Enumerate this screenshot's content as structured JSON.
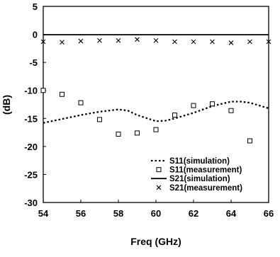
{
  "chart_data": {
    "type": "line",
    "xlabel": "Freq (GHz)",
    "ylabel": "(dB)",
    "xlim": [
      54,
      66
    ],
    "ylim": [
      -30,
      5
    ],
    "xticks": [
      "54",
      "56",
      "58",
      "60",
      "62",
      "64",
      "66"
    ],
    "yticks": [
      "5",
      "0",
      "-5",
      "-10",
      "-15",
      "-20",
      "-25",
      "-30"
    ],
    "grid": false,
    "legend_position": "bottom-right",
    "series": [
      {
        "name": "S11(simulation)",
        "style": "dotted-line",
        "x": [
          54,
          55,
          56,
          57,
          58,
          58.5,
          59,
          60,
          60.5,
          61,
          62,
          63,
          64,
          64.5,
          65,
          66
        ],
        "y": [
          -15.8,
          -15.1,
          -14.4,
          -13.8,
          -13.4,
          -13.6,
          -14.4,
          -15.5,
          -15.4,
          -15.0,
          -14.0,
          -12.8,
          -12.0,
          -12.0,
          -12.2,
          -13.2
        ]
      },
      {
        "name": "S11(measurement)",
        "style": "open-square",
        "x": [
          54,
          55,
          56,
          57,
          58,
          59,
          60,
          61,
          62,
          63,
          64,
          65
        ],
        "y": [
          -10.0,
          -10.7,
          -12.2,
          -15.2,
          -17.8,
          -17.6,
          -17.0,
          -14.4,
          -12.7,
          -12.4,
          -13.6,
          -19.0
        ]
      },
      {
        "name": "S21(simulation)",
        "style": "solid-line",
        "x": [
          54,
          56,
          58,
          60,
          62,
          64,
          66
        ],
        "y": [
          -0.05,
          -0.05,
          -0.05,
          -0.05,
          -0.05,
          -0.05,
          -0.05
        ]
      },
      {
        "name": "S21(measurement)",
        "style": "x-marker",
        "x": [
          54,
          55,
          56,
          57,
          58,
          59,
          60,
          61,
          62,
          63,
          64,
          65,
          66
        ],
        "y": [
          -1.3,
          -1.4,
          -1.2,
          -1.1,
          -1.1,
          -0.9,
          -1.1,
          -1.3,
          -1.3,
          -1.3,
          -1.5,
          -1.3,
          -1.3
        ]
      }
    ]
  }
}
